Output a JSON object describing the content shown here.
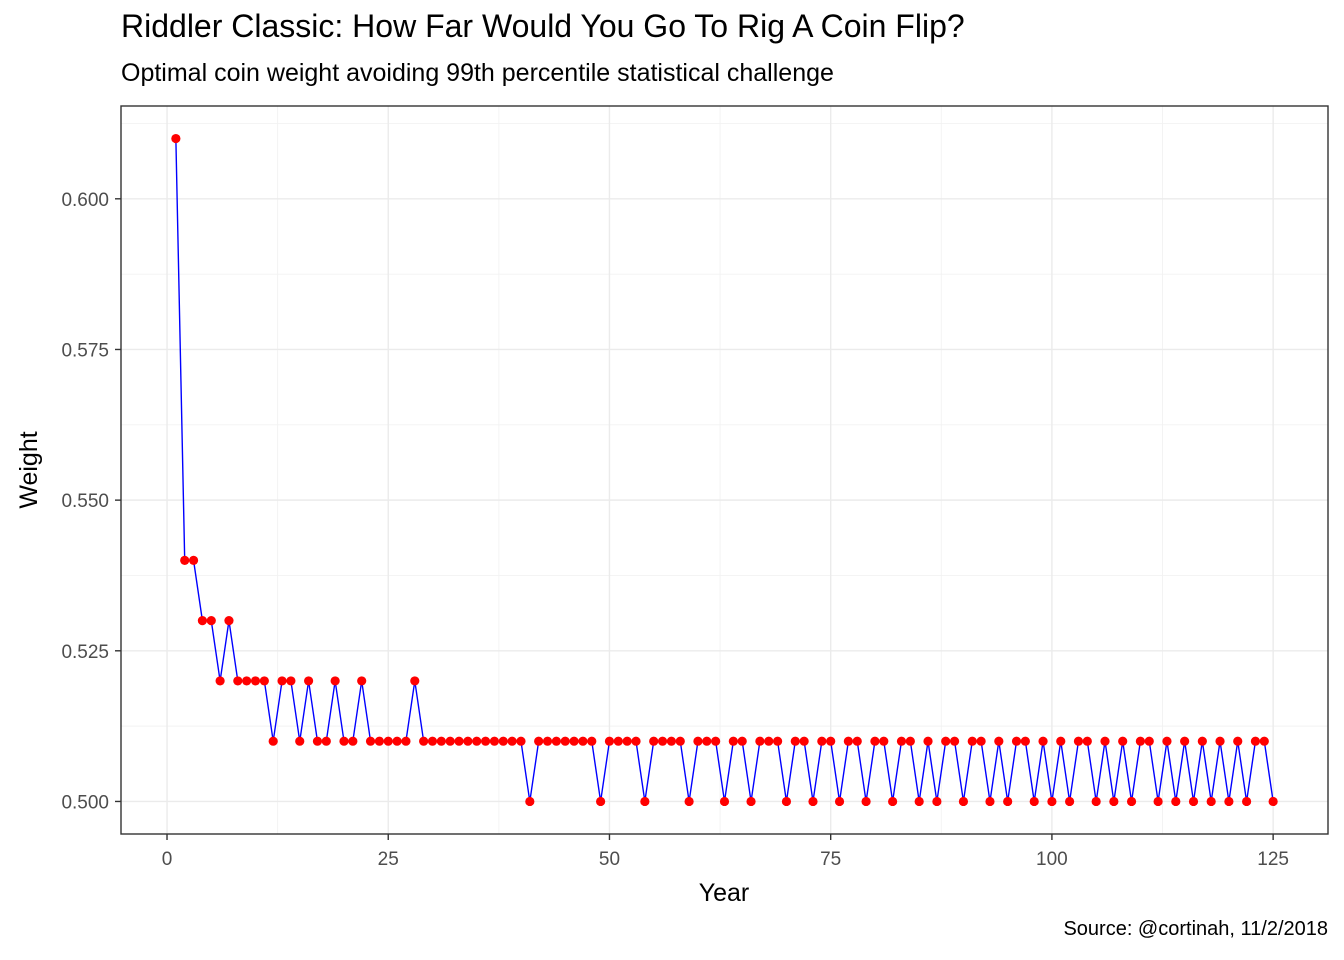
{
  "chart_data": {
    "type": "line",
    "title": "Riddler Classic: How Far Would You Go To Rig A Coin Flip?",
    "subtitle": "Optimal coin weight avoiding 99th percentile statistical challenge",
    "caption": "Source: @cortinah, 11/2/2018",
    "xlabel": "Year",
    "ylabel": "Weight",
    "xlim": [
      -5.2,
      131.2
    ],
    "ylim": [
      0.4946,
      0.6154
    ],
    "x_ticks": [
      0,
      25,
      50,
      75,
      100,
      125
    ],
    "x_tick_labels": [
      "0",
      "25",
      "50",
      "75",
      "100",
      "125"
    ],
    "y_ticks": [
      0.5,
      0.525,
      0.55,
      0.575,
      0.6
    ],
    "y_tick_labels": [
      "0.500",
      "0.525",
      "0.550",
      "0.575",
      "0.600"
    ],
    "grid": true,
    "line_color": "#0000ff",
    "point_color": "#ff0000",
    "series": [
      {
        "x": [
          1,
          2,
          3,
          4,
          5,
          6,
          7,
          8,
          9,
          10,
          11,
          12,
          13,
          14,
          15,
          16,
          17,
          18,
          19,
          20,
          21,
          22,
          23,
          24,
          25,
          26,
          27,
          28,
          29,
          30,
          31,
          32,
          33,
          34,
          35,
          36,
          37,
          38,
          39,
          40,
          41,
          42,
          43,
          44,
          45,
          46,
          47,
          48,
          49,
          50,
          51,
          52,
          53,
          54,
          55,
          56,
          57,
          58,
          59,
          60,
          61,
          62,
          63,
          64,
          65,
          66,
          67,
          68,
          69,
          70,
          71,
          72,
          73,
          74,
          75,
          76,
          77,
          78,
          79,
          80,
          81,
          82,
          83,
          84,
          85,
          86,
          87,
          88,
          89,
          90,
          91,
          92,
          93,
          94,
          95,
          96,
          97,
          98,
          99,
          100,
          101,
          102,
          103,
          104,
          105,
          106,
          107,
          108,
          109,
          110,
          111,
          112,
          113,
          114,
          115,
          116,
          117,
          118,
          119,
          120,
          121,
          122,
          123,
          124,
          125
        ],
        "y": [
          0.61,
          0.54,
          0.54,
          0.53,
          0.53,
          0.52,
          0.53,
          0.52,
          0.52,
          0.52,
          0.52,
          0.51,
          0.52,
          0.52,
          0.51,
          0.52,
          0.51,
          0.51,
          0.52,
          0.51,
          0.51,
          0.52,
          0.51,
          0.51,
          0.51,
          0.51,
          0.51,
          0.52,
          0.51,
          0.51,
          0.51,
          0.51,
          0.51,
          0.51,
          0.51,
          0.51,
          0.51,
          0.51,
          0.51,
          0.51,
          0.5,
          0.51,
          0.51,
          0.51,
          0.51,
          0.51,
          0.51,
          0.51,
          0.5,
          0.51,
          0.51,
          0.51,
          0.51,
          0.5,
          0.51,
          0.51,
          0.51,
          0.51,
          0.5,
          0.51,
          0.51,
          0.51,
          0.5,
          0.51,
          0.51,
          0.5,
          0.51,
          0.51,
          0.51,
          0.5,
          0.51,
          0.51,
          0.5,
          0.51,
          0.51,
          0.5,
          0.51,
          0.51,
          0.5,
          0.51,
          0.51,
          0.5,
          0.51,
          0.51,
          0.5,
          0.51,
          0.5,
          0.51,
          0.51,
          0.5,
          0.51,
          0.51,
          0.5,
          0.51,
          0.5,
          0.51,
          0.51,
          0.5,
          0.51,
          0.5,
          0.51,
          0.5,
          0.51,
          0.51,
          0.5,
          0.51,
          0.5,
          0.51,
          0.5,
          0.51,
          0.51,
          0.5,
          0.51,
          0.5,
          0.51,
          0.5,
          0.51,
          0.5,
          0.51,
          0.5,
          0.51,
          0.5,
          0.51,
          0.51,
          0.5
        ]
      }
    ]
  }
}
